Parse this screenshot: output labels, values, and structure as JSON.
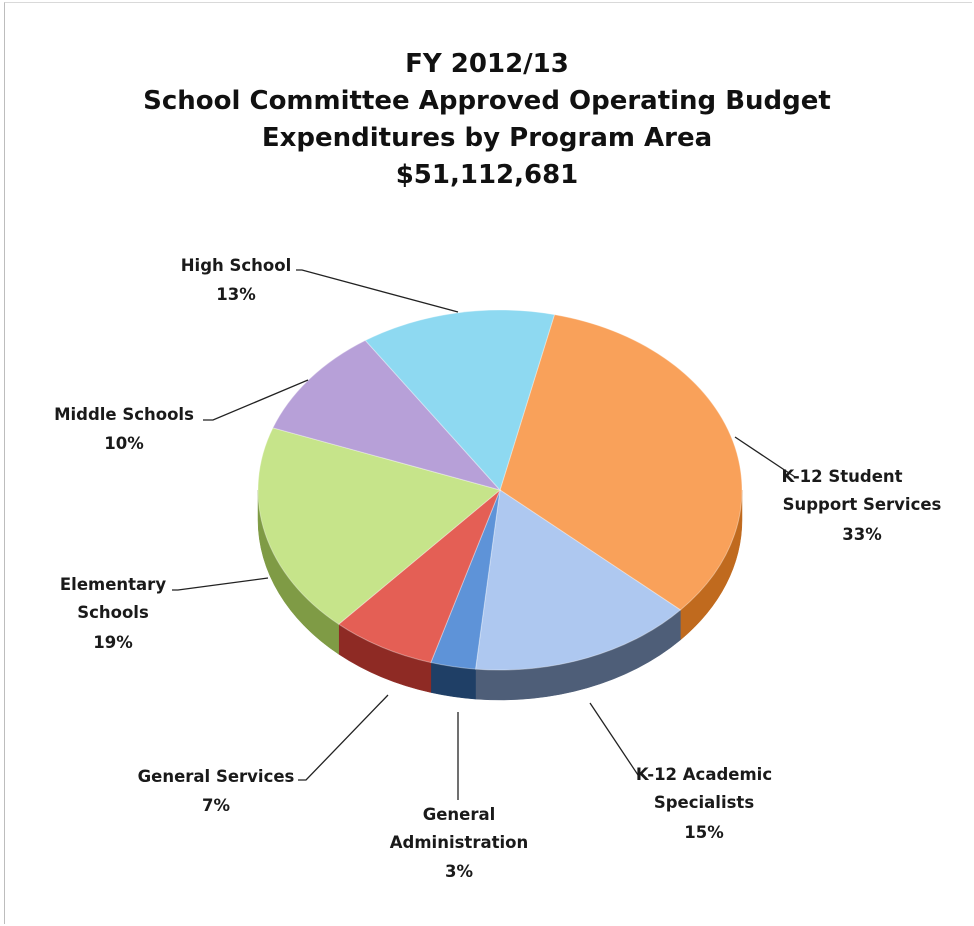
{
  "chart_data": {
    "type": "pie",
    "title_lines": [
      "FY 2012/13",
      "School Committee Approved Operating Budget",
      "Expenditures by Program Area",
      "$51,112,681"
    ],
    "slices": [
      {
        "label_lines": [
          "K-12 Student",
          "Support Services"
        ],
        "percent_text": "33%",
        "value": 33,
        "color": "#F9A15A",
        "side_color": "#C06A1E"
      },
      {
        "label_lines": [
          "K-12 Academic",
          "Specialists"
        ],
        "percent_text": "15%",
        "value": 15,
        "color": "#AEC8F0",
        "side_color": "#4E5E78"
      },
      {
        "label_lines": [
          "General",
          "Administration"
        ],
        "percent_text": "3%",
        "value": 3,
        "color": "#5E93D8",
        "side_color": "#1F3F66"
      },
      {
        "label_lines": [
          "General Services"
        ],
        "percent_text": "7%",
        "value": 7,
        "color": "#E45F55",
        "side_color": "#8E2A24"
      },
      {
        "label_lines": [
          "Elementary",
          "Schools"
        ],
        "percent_text": "19%",
        "value": 19,
        "color": "#C6E48A",
        "side_color": "#7F9B45"
      },
      {
        "label_lines": [
          "Middle Schools"
        ],
        "percent_text": "10%",
        "value": 10,
        "color": "#B7A0D8",
        "side_color": "#6E5A8E"
      },
      {
        "label_lines": [
          "High School"
        ],
        "percent_text": "13%",
        "value": 13,
        "color": "#8ED9F1",
        "side_color": "#4A9AB3"
      }
    ],
    "legend": "none",
    "style": "3d-pie-with-leader-lines"
  }
}
